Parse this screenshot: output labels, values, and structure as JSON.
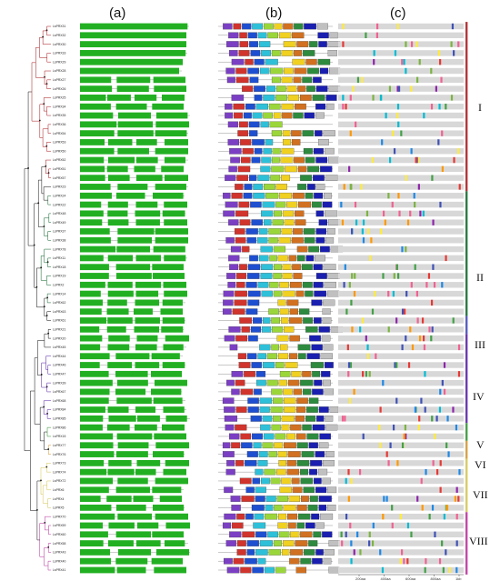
{
  "panels": {
    "a": "(a)",
    "b": "(b)",
    "c": "(c)"
  },
  "groups": [
    {
      "label": "I",
      "color": "#b2383c",
      "start": 0,
      "end": 18
    },
    {
      "label": "II",
      "color": "#2e7a48",
      "start": 19,
      "end": 32
    },
    {
      "label": "III",
      "color": "#5a5fc0",
      "start": 33,
      "end": 34
    },
    {
      "label": "IV",
      "color": "#6b3bb0",
      "start": 35,
      "end": 44
    },
    {
      "label": "V",
      "color": "#4da04a",
      "start": 45,
      "end": 46
    },
    {
      "label": "VI",
      "color": "#d7a24a",
      "start": 47,
      "end": 48
    },
    {
      "label": "VII",
      "color": "#d9cc6a",
      "start": 49,
      "end": 54
    },
    {
      "label": "VIII",
      "color": "#c04aa8",
      "start": 55,
      "end": 61
    }
  ],
  "genes": [
    "LsPRX31",
    "LsPRX32",
    "LsPRX30",
    "LsPRX33",
    "LsPRX29",
    "LsPRX28",
    "LsPRX27",
    "LsPRX26",
    "LsPRX25",
    "LsPRX34",
    "LsPRX35",
    "LsPRX36",
    "LsPRX54",
    "LsPRX53",
    "LsPRX50",
    "LsPRX52",
    "LsPRX51",
    "LsPRX57",
    "LsPRX23",
    "LsPRX24",
    "LsPRX22",
    "LsPRX48",
    "LsPRX49",
    "LsPRX37",
    "LsPRX38",
    "LsPRX78",
    "LsPRX11",
    "LsPRX18",
    "LsPRX19",
    "LsPRX2",
    "LsPRX14",
    "LsPRX62",
    "LsPRX63",
    "LsPRX61",
    "LsPRX21",
    "LsPRX20",
    "LsPRX45",
    "LsPRX44",
    "LsPRX46",
    "LsPRX47",
    "LsPRX39",
    "LsPRX67",
    "LsPRX68",
    "LsPRX84",
    "LsPRX85",
    "LsPRX86",
    "LsPRX15",
    "LsPRX77",
    "LsPRX76",
    "LsPRX73",
    "LsPRX74",
    "LsPRX72",
    "LsPRX6",
    "LsPRX4",
    "LsPRX5",
    "LsPRX70",
    "LsPRX59",
    "LsPRX60",
    "LsPRX58",
    "LsPRX43",
    "LsPRX40",
    "LsPRX41"
  ],
  "axis_c": {
    "ticks": [
      "200aa",
      "400aa",
      "600aa",
      "800aa",
      "1kb"
    ]
  }
}
